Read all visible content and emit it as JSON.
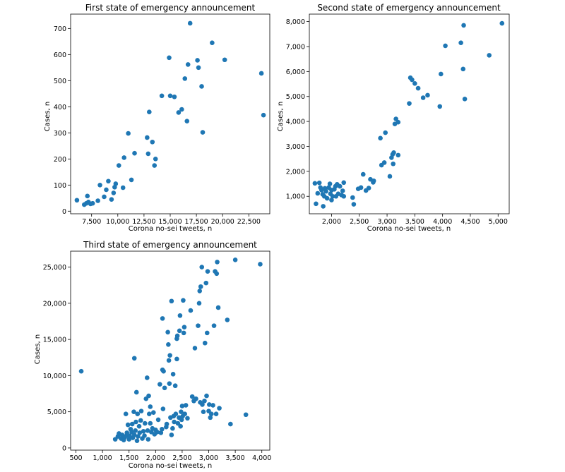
{
  "chart_data": [
    {
      "type": "scatter",
      "title": "First state of emergency announcement",
      "xlabel": "Corona no-sei tweets, n",
      "ylabel": "Cases, n",
      "xlim": [
        5500,
        24500
      ],
      "ylim": [
        -10,
        755
      ],
      "xticks": [
        7500,
        10000,
        12500,
        15000,
        17500,
        20000,
        22500
      ],
      "xtick_labels": [
        "7,500",
        "10,000",
        "12,500",
        "15,000",
        "17,500",
        "20,000",
        "22,500"
      ],
      "yticks": [
        0,
        100,
        200,
        300,
        400,
        500,
        600,
        700
      ],
      "ytick_labels": [
        "0",
        "100",
        "200",
        "300",
        "400",
        "500",
        "600",
        "700"
      ],
      "color": "#1f77b4",
      "points": [
        [
          6100,
          42
        ],
        [
          6800,
          25
        ],
        [
          7000,
          30
        ],
        [
          7100,
          58
        ],
        [
          7200,
          35
        ],
        [
          7400,
          28
        ],
        [
          7600,
          30
        ],
        [
          8100,
          40
        ],
        [
          8300,
          100
        ],
        [
          8700,
          55
        ],
        [
          8900,
          82
        ],
        [
          9100,
          115
        ],
        [
          9400,
          45
        ],
        [
          9600,
          70
        ],
        [
          9700,
          92
        ],
        [
          9800,
          105
        ],
        [
          10100,
          175
        ],
        [
          10500,
          90
        ],
        [
          10600,
          205
        ],
        [
          11000,
          298
        ],
        [
          11300,
          120
        ],
        [
          11600,
          222
        ],
        [
          12800,
          282
        ],
        [
          12900,
          220
        ],
        [
          13000,
          380
        ],
        [
          13300,
          265
        ],
        [
          13500,
          175
        ],
        [
          13600,
          200
        ],
        [
          14200,
          442
        ],
        [
          14900,
          588
        ],
        [
          15000,
          442
        ],
        [
          15400,
          438
        ],
        [
          15800,
          378
        ],
        [
          16100,
          390
        ],
        [
          16400,
          508
        ],
        [
          16600,
          345
        ],
        [
          16700,
          562
        ],
        [
          16900,
          720
        ],
        [
          17600,
          578
        ],
        [
          17700,
          550
        ],
        [
          18000,
          478
        ],
        [
          18100,
          302
        ],
        [
          19000,
          645
        ],
        [
          20200,
          580
        ],
        [
          23700,
          528
        ],
        [
          23900,
          368
        ]
      ]
    },
    {
      "type": "scatter",
      "title": "Second state of emergency announcement",
      "xlabel": "Corona no-sei tweets, n",
      "ylabel": "Cases, n",
      "xlim": [
        1600,
        5200
      ],
      "ylim": [
        300,
        8300
      ],
      "xticks": [
        2000,
        2500,
        3000,
        3500,
        4000,
        4500,
        5000
      ],
      "xtick_labels": [
        "2,000",
        "2,500",
        "3,000",
        "3,500",
        "4,000",
        "4,500",
        "5,000"
      ],
      "yticks": [
        1000,
        2000,
        3000,
        4000,
        5000,
        6000,
        7000,
        8000
      ],
      "ytick_labels": [
        "1,000",
        "2,000",
        "3,000",
        "4,000",
        "5,000",
        "6,000",
        "7,000",
        "8,000"
      ],
      "color": "#1f77b4",
      "points": [
        [
          1700,
          1520
        ],
        [
          1720,
          700
        ],
        [
          1750,
          1120
        ],
        [
          1780,
          1540
        ],
        [
          1800,
          1350
        ],
        [
          1820,
          1250
        ],
        [
          1840,
          1080
        ],
        [
          1850,
          600
        ],
        [
          1870,
          1000
        ],
        [
          1880,
          1320
        ],
        [
          1900,
          1200
        ],
        [
          1920,
          920
        ],
        [
          1950,
          1350
        ],
        [
          1970,
          1500
        ],
        [
          1980,
          1100
        ],
        [
          2000,
          1250
        ],
        [
          2000,
          850
        ],
        [
          2020,
          1000
        ],
        [
          2050,
          1280
        ],
        [
          2070,
          1400
        ],
        [
          2080,
          1000
        ],
        [
          2100,
          1480
        ],
        [
          2120,
          1100
        ],
        [
          2150,
          1400
        ],
        [
          2180,
          1050
        ],
        [
          2200,
          1220
        ],
        [
          2220,
          1550
        ],
        [
          2220,
          1000
        ],
        [
          2380,
          950
        ],
        [
          2400,
          680
        ],
        [
          2480,
          1300
        ],
        [
          2530,
          1350
        ],
        [
          2570,
          1880
        ],
        [
          2620,
          1230
        ],
        [
          2670,
          1330
        ],
        [
          2700,
          1680
        ],
        [
          2750,
          1560
        ],
        [
          2760,
          1620
        ],
        [
          2880,
          3330
        ],
        [
          2900,
          2250
        ],
        [
          2950,
          2350
        ],
        [
          2970,
          3550
        ],
        [
          3050,
          1800
        ],
        [
          3080,
          2550
        ],
        [
          3100,
          2680
        ],
        [
          3110,
          2300
        ],
        [
          3120,
          2750
        ],
        [
          3140,
          3900
        ],
        [
          3160,
          4100
        ],
        [
          3200,
          2650
        ],
        [
          3200,
          3970
        ],
        [
          3400,
          4720
        ],
        [
          3420,
          5750
        ],
        [
          3450,
          5670
        ],
        [
          3500,
          5520
        ],
        [
          3560,
          5330
        ],
        [
          3650,
          4950
        ],
        [
          3730,
          5050
        ],
        [
          3950,
          4600
        ],
        [
          3970,
          5900
        ],
        [
          4050,
          7030
        ],
        [
          4330,
          7150
        ],
        [
          4370,
          6100
        ],
        [
          4380,
          7850
        ],
        [
          4400,
          4900
        ],
        [
          4840,
          6650
        ],
        [
          5070,
          7930
        ]
      ]
    },
    {
      "type": "scatter",
      "title": "Third state of emergency announcement",
      "xlabel": "Corona no-sei tweets, n",
      "ylabel": "Cases, n",
      "xlim": [
        400,
        4150
      ],
      "ylim": [
        -300,
        27200
      ],
      "xticks": [
        500,
        1000,
        1500,
        2000,
        2500,
        3000,
        3500,
        4000
      ],
      "xtick_labels": [
        "500",
        "1,000",
        "1,500",
        "2,000",
        "2,500",
        "3,000",
        "3,500",
        "4,000"
      ],
      "yticks": [
        0,
        5000,
        10000,
        15000,
        20000,
        25000
      ],
      "ytick_labels": [
        "0",
        "5,000",
        "10,000",
        "15,000",
        "20,000",
        "25,000"
      ],
      "color": "#1f77b4",
      "points": [
        [
          600,
          10600
        ],
        [
          1240,
          1200
        ],
        [
          1290,
          1600
        ],
        [
          1310,
          2000
        ],
        [
          1350,
          1300
        ],
        [
          1370,
          1800
        ],
        [
          1400,
          1100
        ],
        [
          1420,
          1500
        ],
        [
          1440,
          4700
        ],
        [
          1450,
          1700
        ],
        [
          1460,
          2100
        ],
        [
          1480,
          3200
        ],
        [
          1500,
          1200
        ],
        [
          1510,
          1700
        ],
        [
          1530,
          2600
        ],
        [
          1550,
          2200
        ],
        [
          1560,
          3300
        ],
        [
          1570,
          1400
        ],
        [
          1590,
          5000
        ],
        [
          1600,
          12400
        ],
        [
          1600,
          1800
        ],
        [
          1620,
          2400
        ],
        [
          1630,
          3600
        ],
        [
          1640,
          7700
        ],
        [
          1650,
          1000
        ],
        [
          1660,
          4700
        ],
        [
          1670,
          1600
        ],
        [
          1690,
          3000
        ],
        [
          1700,
          2100
        ],
        [
          1720,
          3800
        ],
        [
          1730,
          5100
        ],
        [
          1750,
          1300
        ],
        [
          1770,
          2300
        ],
        [
          1790,
          1700
        ],
        [
          1800,
          3400
        ],
        [
          1820,
          6800
        ],
        [
          1840,
          9700
        ],
        [
          1850,
          2400
        ],
        [
          1860,
          1200
        ],
        [
          1870,
          7200
        ],
        [
          1880,
          4700
        ],
        [
          1900,
          3400
        ],
        [
          1900,
          5700
        ],
        [
          1920,
          2200
        ],
        [
          1940,
          2700
        ],
        [
          1960,
          4900
        ],
        [
          1980,
          1900
        ],
        [
          2000,
          2500
        ],
        [
          2030,
          2200
        ],
        [
          2050,
          3900
        ],
        [
          2080,
          8800
        ],
        [
          2100,
          2100
        ],
        [
          2120,
          2600
        ],
        [
          2130,
          17900
        ],
        [
          2130,
          10800
        ],
        [
          2140,
          5400
        ],
        [
          2150,
          10600
        ],
        [
          2170,
          8300
        ],
        [
          2200,
          2900
        ],
        [
          2210,
          3300
        ],
        [
          2230,
          16000
        ],
        [
          2240,
          14300
        ],
        [
          2250,
          12100
        ],
        [
          2260,
          8900
        ],
        [
          2270,
          12800
        ],
        [
          2280,
          4200
        ],
        [
          2300,
          20300
        ],
        [
          2300,
          1800
        ],
        [
          2320,
          2700
        ],
        [
          2330,
          10200
        ],
        [
          2340,
          4400
        ],
        [
          2350,
          3600
        ],
        [
          2370,
          8600
        ],
        [
          2380,
          4700
        ],
        [
          2400,
          15100
        ],
        [
          2400,
          12300
        ],
        [
          2410,
          15500
        ],
        [
          2420,
          3400
        ],
        [
          2440,
          4200
        ],
        [
          2450,
          16200
        ],
        [
          2460,
          18300
        ],
        [
          2470,
          3000
        ],
        [
          2480,
          5000
        ],
        [
          2490,
          3900
        ],
        [
          2500,
          5800
        ],
        [
          2510,
          4400
        ],
        [
          2520,
          20400
        ],
        [
          2530,
          15900
        ],
        [
          2540,
          16700
        ],
        [
          2550,
          4700
        ],
        [
          2570,
          5900
        ],
        [
          2600,
          4100
        ],
        [
          2660,
          19000
        ],
        [
          2690,
          7100
        ],
        [
          2720,
          6500
        ],
        [
          2740,
          13800
        ],
        [
          2760,
          6800
        ],
        [
          2800,
          16900
        ],
        [
          2820,
          20000
        ],
        [
          2830,
          21700
        ],
        [
          2840,
          6300
        ],
        [
          2850,
          22300
        ],
        [
          2870,
          25000
        ],
        [
          2880,
          6000
        ],
        [
          2900,
          5000
        ],
        [
          2920,
          6500
        ],
        [
          2930,
          14500
        ],
        [
          2950,
          22800
        ],
        [
          2960,
          7200
        ],
        [
          2970,
          15900
        ],
        [
          2980,
          24400
        ],
        [
          3000,
          5100
        ],
        [
          3010,
          6000
        ],
        [
          3030,
          4200
        ],
        [
          3050,
          4700
        ],
        [
          3080,
          5900
        ],
        [
          3100,
          16900
        ],
        [
          3120,
          24400
        ],
        [
          3140,
          4700
        ],
        [
          3150,
          24100
        ],
        [
          3160,
          25700
        ],
        [
          3180,
          19400
        ],
        [
          3200,
          5500
        ],
        [
          3350,
          17700
        ],
        [
          3410,
          3300
        ],
        [
          3500,
          26000
        ],
        [
          3700,
          4600
        ],
        [
          3970,
          25400
        ]
      ]
    }
  ]
}
